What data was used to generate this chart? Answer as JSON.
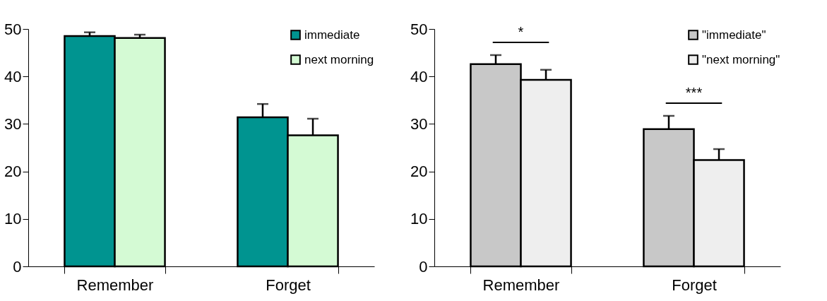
{
  "chart_data": [
    {
      "type": "bar",
      "categories": [
        "Remember",
        "Forget"
      ],
      "series": [
        {
          "name": "immediate",
          "color": "#009490",
          "values": [
            48.5,
            31.4
          ],
          "errors": [
            [
              48.5,
              49.3
            ],
            [
              31.4,
              34.2
            ]
          ]
        },
        {
          "name": "next morning",
          "color": "#d4fad4",
          "values": [
            48.1,
            27.6
          ],
          "errors": [
            [
              48.1,
              48.8
            ],
            [
              27.6,
              31.1
            ]
          ]
        }
      ],
      "ylim": [
        0,
        50
      ],
      "yticks": [
        0,
        10,
        20,
        30,
        40,
        50
      ],
      "grid": false,
      "legend": "top right"
    },
    {
      "type": "bar",
      "categories": [
        "Remember",
        "Forget"
      ],
      "series": [
        {
          "name": "\"immediate\"",
          "color": "#c8c8c8",
          "values": [
            42.6,
            28.9
          ],
          "errors": [
            [
              42.6,
              44.5
            ],
            [
              28.9,
              31.7
            ]
          ]
        },
        {
          "name": "\"next morning\"",
          "color": "#eeeeee",
          "values": [
            39.3,
            22.4
          ],
          "errors": [
            [
              39.3,
              41.4
            ],
            [
              22.4,
              24.7
            ]
          ]
        }
      ],
      "annotations": [
        "*",
        "***"
      ],
      "ylim": [
        0,
        50
      ],
      "yticks": [
        0,
        10,
        20,
        30,
        40,
        50
      ],
      "grid": false,
      "legend": "top right"
    }
  ]
}
